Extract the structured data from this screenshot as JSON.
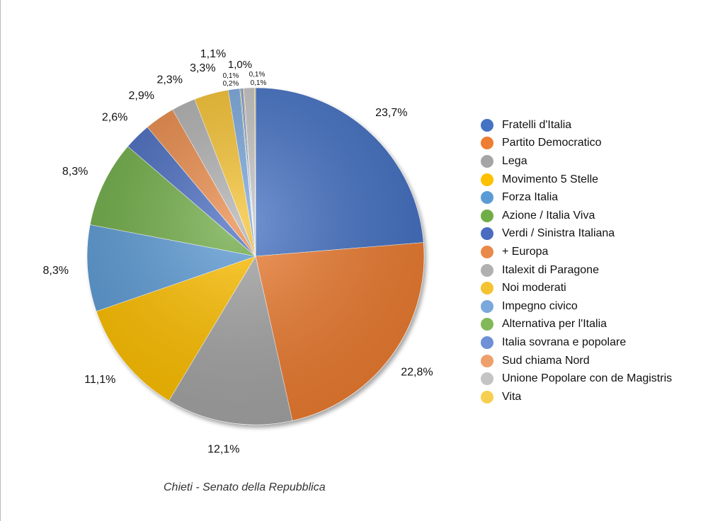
{
  "chart_data": {
    "type": "pie",
    "title": "Chieti - Senato della Repubblica",
    "legend_position": "right",
    "categories": [
      "Fratelli d'Italia",
      "Partito Democratico",
      "Lega",
      "Movimento 5 Stelle",
      "Forza Italia",
      "Azione / Italia Viva",
      "Verdi / Sinistra Italiana",
      "+ Europa",
      "Italexit di Paragone",
      "Noi moderati",
      "Impegno civico",
      "Alternativa per l'Italia",
      "Italia sovrana e popolare",
      "Sud chiama Nord",
      "Unione Popolare con de Magistris",
      "Vita"
    ],
    "values": [
      23.7,
      22.8,
      12.1,
      11.1,
      8.3,
      8.3,
      2.6,
      2.9,
      2.3,
      3.3,
      1.1,
      0.1,
      0.2,
      0.1,
      1.0,
      0.1
    ],
    "labels": [
      "23,7%",
      "22,8%",
      "12,1%",
      "11,1%",
      "8,3%",
      "8,3%",
      "2,6%",
      "2,9%",
      "2,3%",
      "3,3%",
      "1,1%",
      "0,1%",
      "0,2%",
      "0,1%",
      "1,0%",
      "0,1%"
    ],
    "colors": [
      "#4472c4",
      "#ed7d31",
      "#a5a5a5",
      "#ffc000",
      "#5b9bd5",
      "#70ad47",
      "#4a6cc0",
      "#e98a4a",
      "#b0b0b0",
      "#f5c232",
      "#7aa7dc",
      "#82b85a",
      "#6f8fd6",
      "#eea06a",
      "#c4c4c4",
      "#f7cf50"
    ]
  }
}
